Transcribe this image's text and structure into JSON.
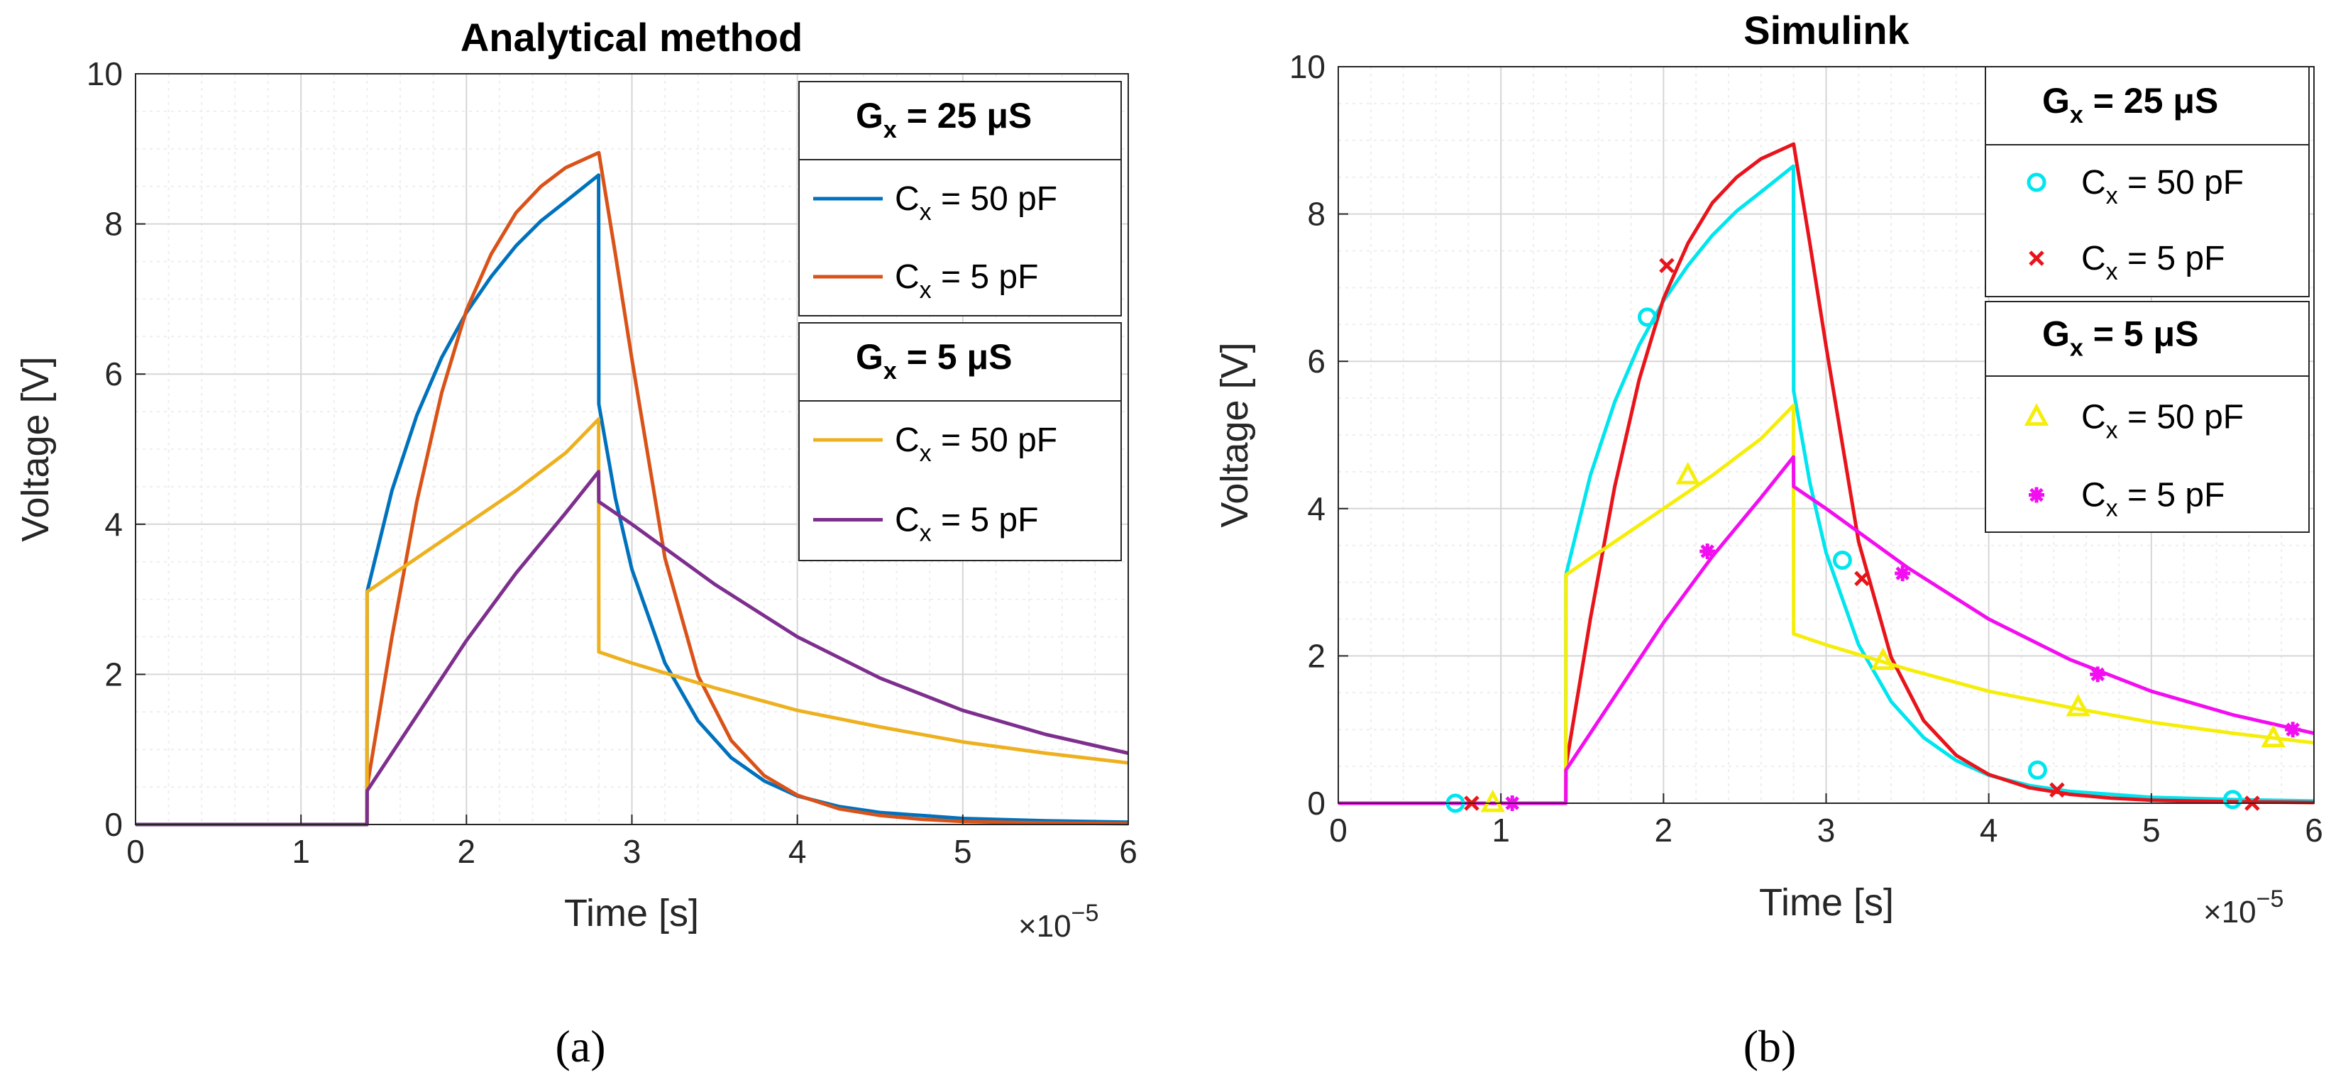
{
  "figure_caption_a": "(a)",
  "figure_caption_b": "(b)",
  "chart_data": [
    {
      "type": "line",
      "panel": "a",
      "title": "Analytical method",
      "xlabel": "Time [s]",
      "ylabel": "Voltage [V]",
      "x_exponent_label": "×10",
      "x_exponent": "−5",
      "xlim": [
        0,
        6
      ],
      "ylim": [
        0,
        10
      ],
      "xticks": [
        "0",
        "1",
        "2",
        "3",
        "4",
        "5",
        "6"
      ],
      "yticks": [
        "0",
        "2",
        "4",
        "6",
        "8",
        "10"
      ],
      "grid": "major+minor",
      "legend_position": "top-right",
      "legend_groups": [
        {
          "header_main": "G",
          "header_sub": "x",
          "header_rest": " = 25 μS",
          "entries": [
            0,
            1
          ]
        },
        {
          "header_main": "G",
          "header_sub": "x",
          "header_rest": " = 5 μS",
          "entries": [
            2,
            3
          ]
        }
      ],
      "series": [
        {
          "name": "Cx = 50 pF",
          "label_main": "C",
          "label_sub": "x",
          "label_rest": " = 50 pF",
          "color": "#0072BD",
          "marker": "none",
          "x": [
            0,
            1.399,
            1.4,
            1.55,
            1.7,
            1.85,
            2.0,
            2.15,
            2.3,
            2.45,
            2.6,
            2.799,
            2.8,
            2.9,
            3.0,
            3.2,
            3.4,
            3.6,
            3.8,
            4.0,
            4.25,
            4.5,
            4.75,
            5.0,
            5.5,
            6.0
          ],
          "y": [
            0,
            0,
            3.1,
            4.45,
            5.45,
            6.22,
            6.82,
            7.3,
            7.71,
            8.04,
            8.3,
            8.65,
            5.6,
            4.35,
            3.4,
            2.15,
            1.38,
            0.89,
            0.58,
            0.38,
            0.24,
            0.16,
            0.12,
            0.08,
            0.05,
            0.03
          ]
        },
        {
          "name": "Cx = 5 pF",
          "label_main": "C",
          "label_sub": "x",
          "label_rest": " = 5 pF",
          "color": "#D95319",
          "marker": "none",
          "x": [
            0,
            1.399,
            1.4,
            1.55,
            1.7,
            1.85,
            2.0,
            2.15,
            2.3,
            2.45,
            2.6,
            2.8,
            2.9,
            3.0,
            3.2,
            3.4,
            3.6,
            3.8,
            4.0,
            4.25,
            4.5,
            4.75,
            5.0,
            5.5,
            6.0
          ],
          "y": [
            0,
            0,
            0.5,
            2.5,
            4.3,
            5.75,
            6.85,
            7.6,
            8.15,
            8.5,
            8.75,
            8.95,
            7.6,
            6.2,
            3.55,
            1.98,
            1.12,
            0.65,
            0.39,
            0.21,
            0.12,
            0.07,
            0.04,
            0.02,
            0.01
          ]
        },
        {
          "name": "Cx = 50 pF",
          "label_main": "C",
          "label_sub": "x",
          "label_rest": " = 50 pF",
          "color": "#EDB120",
          "marker": "none",
          "x": [
            0,
            1.399,
            1.4,
            1.7,
            2.0,
            2.3,
            2.6,
            2.799,
            2.8,
            3.0,
            3.5,
            4.0,
            4.5,
            5.0,
            5.5,
            6.0
          ],
          "y": [
            0,
            0,
            3.1,
            3.55,
            4.0,
            4.45,
            4.95,
            5.4,
            2.3,
            2.15,
            1.82,
            1.52,
            1.3,
            1.1,
            0.95,
            0.82
          ]
        },
        {
          "name": "Cx = 5 pF",
          "label_main": "C",
          "label_sub": "x",
          "label_rest": " = 5 pF",
          "color": "#7E2F8E",
          "marker": "none",
          "x": [
            0,
            1.399,
            1.4,
            1.7,
            2.0,
            2.3,
            2.6,
            2.799,
            2.8,
            3.0,
            3.5,
            4.0,
            4.5,
            5.0,
            5.5,
            6.0
          ],
          "y": [
            0,
            0,
            0.45,
            1.45,
            2.45,
            3.35,
            4.15,
            4.7,
            4.3,
            4.0,
            3.2,
            2.5,
            1.95,
            1.52,
            1.2,
            0.95
          ]
        }
      ]
    },
    {
      "type": "line",
      "panel": "b",
      "title": "Simulink",
      "xlabel": "Time [s]",
      "ylabel": "Voltage [V]",
      "x_exponent_label": "×10",
      "x_exponent": "−5",
      "xlim": [
        0,
        6
      ],
      "ylim": [
        0,
        10
      ],
      "xticks": [
        "0",
        "1",
        "2",
        "3",
        "4",
        "5",
        "6"
      ],
      "yticks": [
        "0",
        "2",
        "4",
        "6",
        "8",
        "10"
      ],
      "grid": "major+minor",
      "legend_position": "top-right",
      "legend_groups": [
        {
          "header_main": "G",
          "header_sub": "x",
          "header_rest": " = 25 μS",
          "entries": [
            0,
            1
          ]
        },
        {
          "header_main": "G",
          "header_sub": "x",
          "header_rest": " = 5 μS",
          "entries": [
            2,
            3
          ]
        }
      ],
      "series": [
        {
          "name": "Cx = 50 pF",
          "label_main": "C",
          "label_sub": "x",
          "label_rest": " = 50 pF",
          "color": "#00E5EE",
          "marker": "circle",
          "x": [
            0,
            1.399,
            1.4,
            1.55,
            1.7,
            1.85,
            2.0,
            2.15,
            2.3,
            2.45,
            2.6,
            2.799,
            2.8,
            2.9,
            3.0,
            3.2,
            3.4,
            3.6,
            3.8,
            4.0,
            4.25,
            4.5,
            4.75,
            5.0,
            5.5,
            6.0
          ],
          "y": [
            0,
            0,
            3.1,
            4.45,
            5.45,
            6.22,
            6.82,
            7.3,
            7.71,
            8.04,
            8.3,
            8.65,
            5.6,
            4.35,
            3.4,
            2.15,
            1.38,
            0.89,
            0.58,
            0.38,
            0.24,
            0.16,
            0.12,
            0.08,
            0.05,
            0.03
          ],
          "markers": [
            [
              0.72,
              0
            ],
            [
              1.9,
              6.6
            ],
            [
              3.1,
              3.3
            ],
            [
              4.3,
              0.45
            ],
            [
              5.5,
              0.05
            ]
          ]
        },
        {
          "name": "Cx = 5 pF",
          "label_main": "C",
          "label_sub": "x",
          "label_rest": " = 5 pF",
          "color": "#E8141B",
          "marker": "x",
          "x": [
            0,
            1.399,
            1.4,
            1.55,
            1.7,
            1.85,
            2.0,
            2.15,
            2.3,
            2.45,
            2.6,
            2.8,
            2.9,
            3.0,
            3.2,
            3.4,
            3.6,
            3.8,
            4.0,
            4.25,
            4.5,
            4.75,
            5.0,
            5.5,
            6.0
          ],
          "y": [
            0,
            0,
            0.5,
            2.5,
            4.3,
            5.75,
            6.85,
            7.6,
            8.15,
            8.5,
            8.75,
            8.95,
            7.6,
            6.2,
            3.55,
            1.98,
            1.12,
            0.65,
            0.39,
            0.21,
            0.12,
            0.07,
            0.04,
            0.02,
            0.01
          ],
          "markers": [
            [
              0.82,
              0
            ],
            [
              2.02,
              7.3
            ],
            [
              3.22,
              3.05
            ],
            [
              4.42,
              0.18
            ],
            [
              5.62,
              0
            ]
          ]
        },
        {
          "name": "Cx = 50 pF",
          "label_main": "C",
          "label_sub": "x",
          "label_rest": " = 50 pF",
          "color": "#F5EE0A",
          "marker": "triangle",
          "x": [
            0,
            1.399,
            1.4,
            1.7,
            2.0,
            2.3,
            2.6,
            2.799,
            2.8,
            3.0,
            3.5,
            4.0,
            4.5,
            5.0,
            5.5,
            6.0
          ],
          "y": [
            0,
            0,
            3.1,
            3.55,
            4.0,
            4.45,
            4.95,
            5.4,
            2.3,
            2.15,
            1.82,
            1.52,
            1.3,
            1.1,
            0.95,
            0.82
          ],
          "markers": [
            [
              0.95,
              0
            ],
            [
              2.15,
              4.45
            ],
            [
              3.35,
              1.93
            ],
            [
              4.55,
              1.3
            ],
            [
              5.75,
              0.88
            ]
          ]
        },
        {
          "name": "Cx = 5 pF",
          "label_main": "C",
          "label_sub": "x",
          "label_rest": " = 5 pF",
          "color": "#F20EF0",
          "marker": "star",
          "x": [
            0,
            1.399,
            1.4,
            1.7,
            2.0,
            2.3,
            2.6,
            2.799,
            2.8,
            3.0,
            3.5,
            4.0,
            4.5,
            5.0,
            5.5,
            6.0
          ],
          "y": [
            0,
            0,
            0.45,
            1.45,
            2.45,
            3.35,
            4.15,
            4.7,
            4.3,
            4.0,
            3.2,
            2.5,
            1.95,
            1.52,
            1.2,
            0.95
          ],
          "markers": [
            [
              1.07,
              0
            ],
            [
              2.27,
              3.42
            ],
            [
              3.47,
              3.12
            ],
            [
              4.67,
              1.75
            ],
            [
              5.87,
              1.0
            ]
          ]
        }
      ]
    }
  ]
}
